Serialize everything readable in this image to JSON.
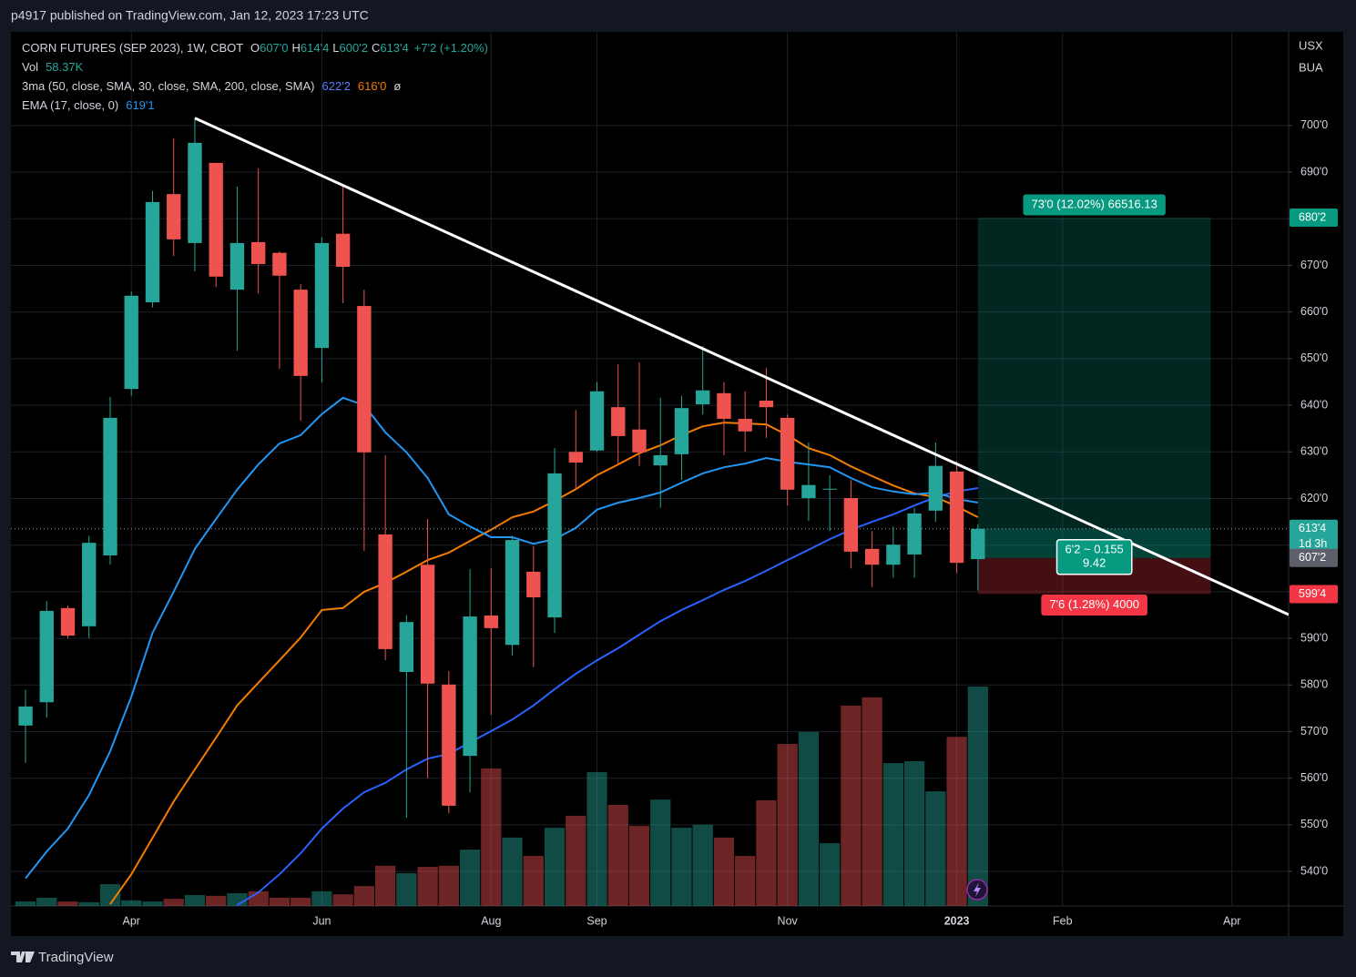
{
  "chart_data": {
    "type": "candlestick",
    "published": "p4917 published on TradingView.com, Jan 12, 2023 17:23 UTC",
    "title": "CORN FUTURES (SEP 2023), 1W, CBOT",
    "currency": "USX",
    "unit": "BUA",
    "brand": "TradingView",
    "legend": {
      "ohlc": [
        {
          "key": "O",
          "text": "607'0"
        },
        {
          "key": "H",
          "text": "614'4"
        },
        {
          "key": "L",
          "text": "600'2"
        },
        {
          "key": "C",
          "text": "613'4"
        }
      ],
      "change": "+7'2 (+1.20%)",
      "vol_label": "Vol",
      "vol_text": "58.37K",
      "ma_title": "3ma (50, close, SMA, 30, close, SMA, 200, close, SMA)",
      "ma_values": [
        "622'2",
        "616'0",
        "ø"
      ],
      "ema_title": "EMA (17, close, 0)",
      "ema_value": "619'1"
    },
    "up_color": "#26a69a",
    "down_color": "#ef5350",
    "open": [
      571.3,
      576.3,
      596.5,
      592.6,
      607.8,
      643.5,
      662.1,
      685.3,
      674.8,
      692,
      664.8,
      675,
      672.7,
      664.8,
      652.3,
      676.8,
      661.3,
      612.3,
      582.8,
      605.8,
      580.1,
      564.8,
      594.9,
      588.6,
      604.3,
      594.5,
      630,
      630.3,
      639.6,
      634.8,
      627.1,
      629.5,
      640.2,
      642.6,
      637.1,
      641,
      637.3,
      620.1,
      622,
      620.1,
      609.2,
      605.8,
      608,
      617.4,
      625.8,
      607
    ],
    "high": [
      579,
      598,
      597,
      612,
      641.8,
      664.4,
      686,
      697.3,
      701.4,
      692,
      686.9,
      690.8,
      673,
      666,
      676,
      686.9,
      664.8,
      629.3,
      595,
      615.6,
      583,
      604.9,
      605,
      612,
      609.8,
      630.8,
      639,
      645,
      648.8,
      649.2,
      641.6,
      642,
      652.7,
      645,
      643,
      648,
      638,
      632,
      625,
      624,
      613,
      614,
      618,
      632,
      628,
      614.5
    ],
    "low": [
      563.3,
      573,
      590,
      590,
      605.8,
      642,
      661,
      672,
      668.7,
      665.4,
      651.7,
      664,
      647.8,
      636.7,
      644.9,
      661.9,
      608.8,
      585.3,
      551.5,
      560,
      552.5,
      557,
      573.6,
      586.3,
      583.8,
      591.2,
      622,
      630,
      627.3,
      627,
      618,
      624,
      638,
      629.3,
      630,
      633,
      618.5,
      615.2,
      613,
      605,
      601,
      603,
      603,
      615,
      604,
      600.25
    ],
    "close": [
      575.4,
      595.9,
      590.6,
      610.5,
      637.3,
      663.5,
      683.6,
      675.6,
      696.3,
      667.6,
      674.8,
      670.3,
      667.8,
      646.3,
      674.8,
      669.7,
      629.9,
      587.7,
      593.5,
      580.3,
      554.1,
      594.7,
      592.2,
      611.1,
      598.8,
      625.4,
      627.7,
      643,
      633.4,
      629.9,
      629.3,
      639.4,
      643.2,
      637.1,
      634.4,
      639.6,
      621.9,
      622.9,
      622.1,
      608.6,
      605.8,
      610.1,
      616.8,
      627,
      606.2,
      613.5
    ],
    "volume": [
      1.2,
      2.2,
      1.2,
      1.0,
      5.8,
      1.5,
      1.2,
      1.9,
      2.9,
      2.7,
      3.4,
      3.9,
      2.2,
      2.2,
      3.9,
      3.1,
      5.3,
      10.7,
      8.7,
      10.4,
      10.7,
      15.0,
      36.6,
      18.2,
      13.3,
      20.8,
      24.0,
      35.6,
      26.9,
      21.3,
      28.3,
      20.8,
      21.6,
      18.2,
      13.3,
      28.1,
      43.1,
      46.3,
      16.7,
      53.3,
      55.5,
      38.0,
      38.5,
      30.5,
      45.0,
      58.37
    ],
    "series": [
      {
        "color": "#2962ff",
        "values": [
          null,
          null,
          null,
          null,
          null,
          null,
          null,
          null,
          null,
          null,
          532.8,
          535.5,
          539.4,
          543.9,
          549.2,
          553.5,
          557,
          559,
          561.9,
          564.2,
          565.2,
          567.7,
          570.1,
          572.6,
          575.6,
          579.1,
          582.4,
          585.3,
          587.9,
          590.8,
          593.7,
          596.1,
          598.2,
          600.4,
          602.3,
          604.5,
          606.8,
          609,
          611.3,
          613.3,
          615,
          616.6,
          618.5,
          620.3,
          621.5,
          622.25
        ]
      },
      {
        "color": "#f57c00",
        "values": [
          null,
          null,
          null,
          null,
          533,
          539.4,
          547.2,
          555,
          561.9,
          568.7,
          575.6,
          580.5,
          585.3,
          590.2,
          596.1,
          596.5,
          600,
          601.9,
          604.3,
          606.8,
          608.4,
          610.9,
          613.3,
          616,
          617.2,
          619.5,
          622,
          625,
          627.3,
          629.7,
          631.4,
          633.6,
          635.5,
          636.3,
          636.1,
          635.9,
          633.6,
          630.8,
          629.3,
          626.9,
          624.8,
          622.8,
          621.1,
          620.3,
          618.3,
          616
        ]
      },
      {
        "color": "#2196f3",
        "values": [
          538.5,
          544.3,
          549.2,
          556.4,
          565.8,
          577.5,
          591.2,
          600,
          609.2,
          615.6,
          621.9,
          627.3,
          631.8,
          633.6,
          638.1,
          641.6,
          640,
          634.2,
          629.9,
          624.4,
          616.6,
          614,
          611.7,
          611.7,
          610.3,
          611.3,
          613.7,
          617.6,
          619.1,
          620.1,
          621.3,
          623.4,
          625.4,
          626.7,
          627.5,
          628.7,
          627.9,
          627.3,
          626.7,
          624.4,
          622.4,
          621.5,
          620.9,
          621.3,
          619.9,
          619.125
        ]
      }
    ],
    "xlim": [
      -0.69,
      59.68
    ],
    "xticks": [
      {
        "value": 5,
        "label": "Apr"
      },
      {
        "value": 14,
        "label": "Jun"
      },
      {
        "value": 22,
        "label": "Aug"
      },
      {
        "value": 27,
        "label": "Sep"
      },
      {
        "value": 36,
        "label": "Nov"
      },
      {
        "value": 44,
        "label": "2023"
      },
      {
        "value": 49,
        "label": "Feb"
      },
      {
        "value": 57,
        "label": "Apr"
      }
    ],
    "ylim": [
      532.6,
      720.1
    ],
    "yticks": [
      {
        "value": 540,
        "label": "540'0"
      },
      {
        "value": 550,
        "label": "550'0"
      },
      {
        "value": 560,
        "label": "560'0"
      },
      {
        "value": 570,
        "label": "570'0"
      },
      {
        "value": 580,
        "label": "580'0"
      },
      {
        "value": 590,
        "label": "590'0"
      },
      {
        "value": 600,
        "label": "600'0"
      },
      {
        "value": 610,
        "label": "610'0"
      },
      {
        "value": 620,
        "label": "620'0"
      },
      {
        "value": 630,
        "label": "630'0"
      },
      {
        "value": 640,
        "label": "640'0"
      },
      {
        "value": 650,
        "label": "650'0"
      },
      {
        "value": 660,
        "label": "660'0"
      },
      {
        "value": 670,
        "label": "670'0"
      },
      {
        "value": 680,
        "label": "680'0"
      },
      {
        "value": 690,
        "label": "690'0"
      },
      {
        "value": 700,
        "label": "700'0"
      }
    ],
    "grid": true,
    "trendline": {
      "x": [
        8,
        59.68
      ],
      "y": [
        701.6,
        595.1
      ]
    },
    "position": {
      "start": 45,
      "end": 56,
      "entry": 607.25,
      "target": 680.25,
      "stop": 599.5,
      "target_label": "73'0 (12.02%) 66516.13",
      "entry_label": [
        "6'2 ~ 0.155",
        "9.42"
      ],
      "stop_label": "7'6 (1.28%) 4000"
    },
    "price_labels": [
      {
        "value": 680.25,
        "label": "680'2",
        "color": "#089981"
      },
      {
        "value": 613.5,
        "label": "613'4",
        "color": "#26a69a"
      },
      {
        "value": 607.25,
        "label": "607'2",
        "color": "#5d606b"
      },
      {
        "value": 599.5,
        "label": "599'4",
        "color": "#f23645"
      }
    ],
    "countdown": "1d 3h"
  }
}
